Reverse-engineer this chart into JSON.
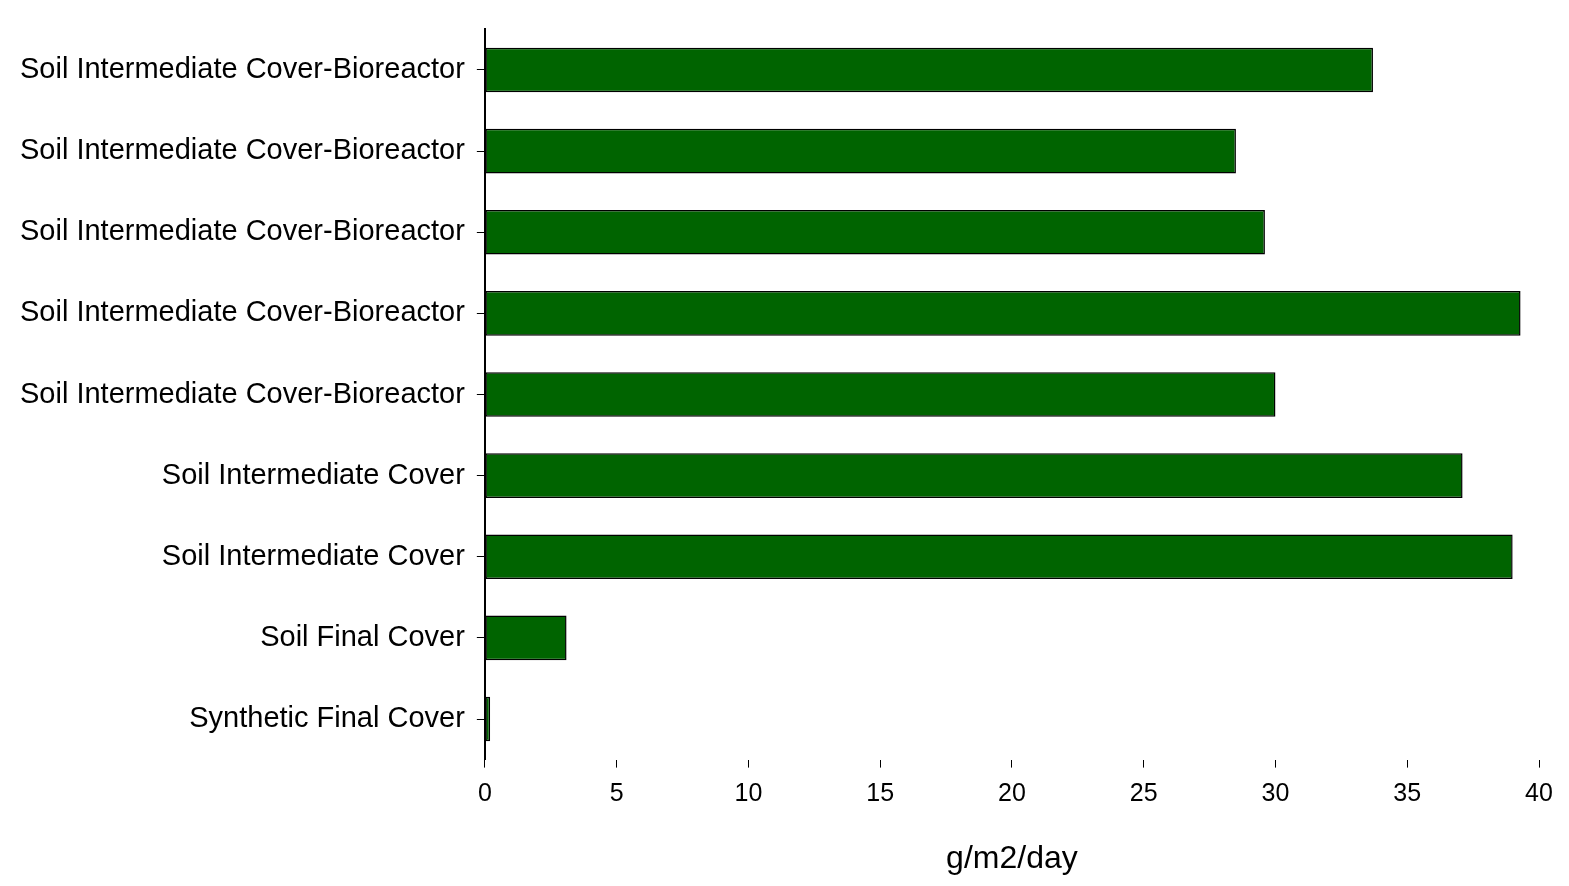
{
  "chart_data": {
    "type": "bar",
    "orientation": "horizontal",
    "xlabel": "g/m2/day",
    "categories": [
      "Soil Intermediate Cover-Bioreactor",
      "Soil Intermediate Cover-Bioreactor",
      "Soil Intermediate Cover-Bioreactor",
      "Soil Intermediate Cover-Bioreactor",
      "Soil Intermediate Cover-Bioreactor",
      "Soil Intermediate Cover",
      "Soil Intermediate Cover",
      "Soil Final Cover",
      "Synthetic Final Cover"
    ],
    "values": [
      33.7,
      28.5,
      29.6,
      39.3,
      30.0,
      37.1,
      39.0,
      3.1,
      0.2
    ],
    "color": "#006400",
    "xlim": [
      0,
      40
    ],
    "xticks": [
      0,
      5,
      10,
      15,
      20,
      25,
      30,
      35,
      40
    ],
    "grid": false,
    "legend": false
  }
}
